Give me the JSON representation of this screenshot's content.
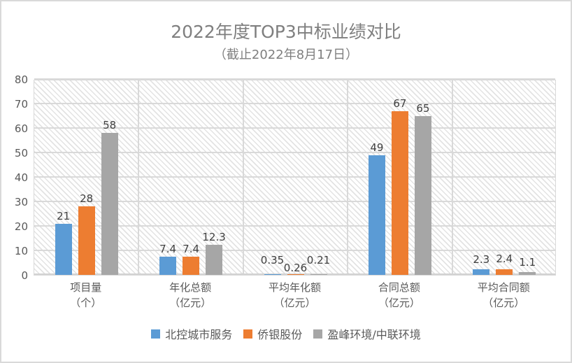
{
  "title": "2022年度TOP3中标业绩对比",
  "subtitle": "（截止2022年8月17日）",
  "chart_data": {
    "type": "bar",
    "categories": [
      "项目量",
      "年化总额",
      "平均年化额",
      "合同总额",
      "平均合同额"
    ],
    "category_units": [
      "（个）",
      "（亿元）",
      "（亿元）",
      "（亿元）",
      "（亿元）"
    ],
    "series": [
      {
        "name": "北控城市服务",
        "color": "#5B9BD5",
        "values": [
          21,
          7.4,
          0.35,
          49,
          2.3
        ]
      },
      {
        "name": "侨银股份",
        "color": "#ED7D31",
        "values": [
          28,
          7.4,
          0.26,
          67,
          2.4
        ]
      },
      {
        "name": "盈峰环境/中联环境",
        "color": "#A6A6A6",
        "values": [
          58,
          12.3,
          0.21,
          65,
          1.1
        ]
      }
    ],
    "ylabel": "",
    "xlabel": "",
    "ylim": [
      0,
      80
    ],
    "ytick_step": 10,
    "grid": true,
    "legend_position": "bottom",
    "plot_background_pattern": "light-diagonal-hatch",
    "colors": {
      "gridline": "#d9d9d9",
      "title_text": "#7f7f7f",
      "axis_text": "#595959",
      "value_label_text": "#404040",
      "frame_border": "#d9d9d9"
    }
  }
}
